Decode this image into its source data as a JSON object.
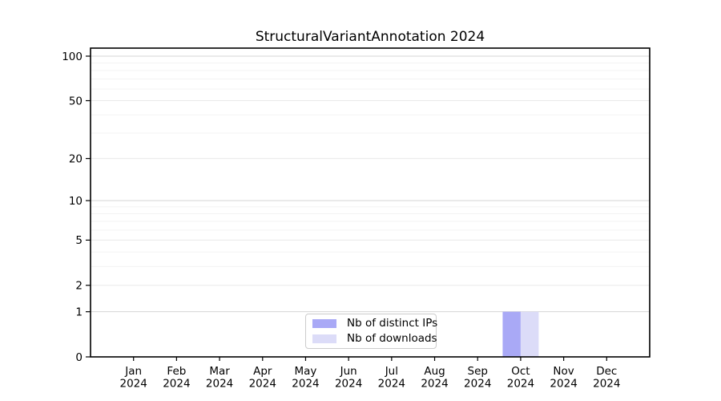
{
  "title": "StructuralVariantAnnotation 2024",
  "colors": {
    "ips_bar": "#a9a9f6",
    "downloads_bar": "#dcdcf8",
    "grid_decade": "#d4d4d4",
    "grid_major": "#e9e9e9",
    "grid_minor": "#f3f3f3",
    "axis": "#000000",
    "legend_border": "#cccccc",
    "background": "#ffffff"
  },
  "chart_data": {
    "type": "bar",
    "title": "StructuralVariantAnnotation 2024",
    "categories": [
      "Jan 2024",
      "Feb 2024",
      "Mar 2024",
      "Apr 2024",
      "May 2024",
      "Jun 2024",
      "Jul 2024",
      "Aug 2024",
      "Sep 2024",
      "Oct 2024",
      "Nov 2024",
      "Dec 2024"
    ],
    "series": [
      {
        "name": "Nb of distinct IPs",
        "color": "#a9a9f6",
        "values": [
          0,
          0,
          0,
          0,
          0,
          0,
          0,
          0,
          0,
          1,
          0,
          0
        ]
      },
      {
        "name": "Nb of downloads",
        "color": "#dcdcf8",
        "values": [
          0,
          0,
          0,
          0,
          0,
          0,
          0,
          0,
          0,
          1,
          0,
          0
        ]
      }
    ],
    "xlabel": "",
    "ylabel": "",
    "y_scale": "log1p",
    "y_ticks": [
      0,
      1,
      2,
      5,
      10,
      20,
      50,
      100
    ],
    "y_minor_ticks": [
      3,
      4,
      6,
      7,
      8,
      9,
      30,
      40,
      60,
      70,
      80,
      90
    ],
    "ylim": [
      0,
      113
    ],
    "grid": true,
    "legend_position": "lower center"
  },
  "legend": {
    "items": [
      {
        "label": "Nb of distinct IPs"
      },
      {
        "label": "Nb of downloads"
      }
    ]
  }
}
